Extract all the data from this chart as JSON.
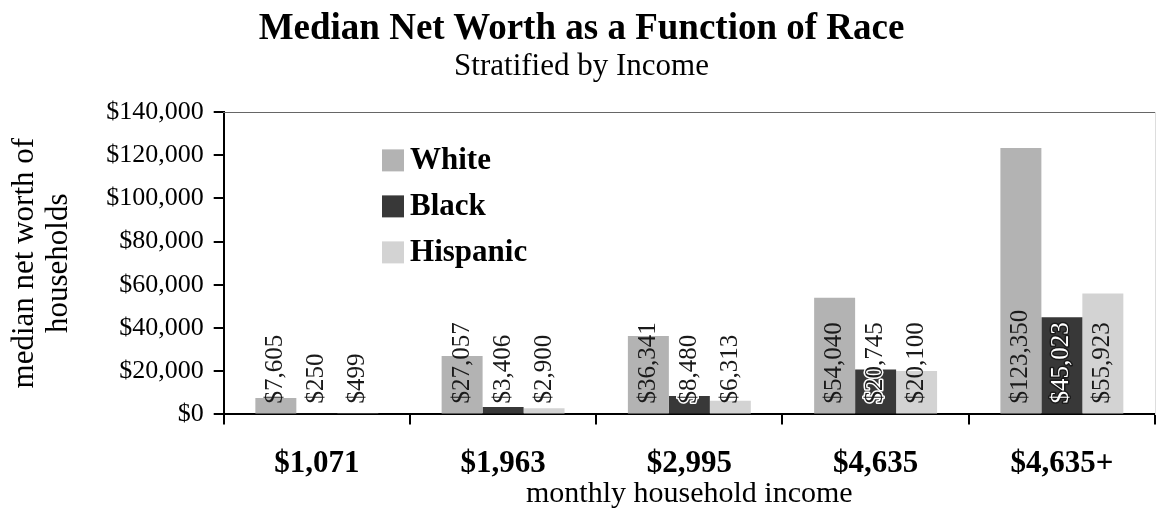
{
  "chart_data": {
    "type": "bar",
    "title": "Median Net Worth as a Function of Race",
    "subtitle": "Stratified by Income",
    "xlabel": "monthly household income",
    "ylabel": "median net worth of households",
    "categories": [
      "$1,071",
      "$1,963",
      "$2,995",
      "$4,635",
      "$4,635+"
    ],
    "series": [
      {
        "name": "White",
        "color": "#b3b3b3",
        "values": [
          7605,
          27057,
          36341,
          54040,
          123350
        ],
        "value_labels": [
          "$7,605",
          "$27,057",
          "$36,341",
          "$54,040",
          "$123,350"
        ]
      },
      {
        "name": "Black",
        "color": "#383838",
        "values": [
          250,
          3406,
          8480,
          20745,
          45023
        ],
        "value_labels": [
          "$250",
          "$3,406",
          "$8,480",
          "$20,745",
          "$45,023"
        ]
      },
      {
        "name": "Hispanic",
        "color": "#d3d3d3",
        "values": [
          499,
          2900,
          6313,
          20100,
          55923
        ],
        "value_labels": [
          "$499",
          "$2,900",
          "$6,313",
          "$20,100",
          "$55,923"
        ]
      }
    ],
    "ylim": [
      0,
      140000
    ],
    "yticks": [
      {
        "value": 0,
        "label": "$0"
      },
      {
        "value": 20000,
        "label": "$20,000"
      },
      {
        "value": 40000,
        "label": "$40,000"
      },
      {
        "value": 60000,
        "label": "$60,000"
      },
      {
        "value": 80000,
        "label": "$80,000"
      },
      {
        "value": 100000,
        "label": "$100,000"
      },
      {
        "value": 120000,
        "label": "$120,000"
      },
      {
        "value": 140000,
        "label": "$140,000"
      }
    ],
    "grid": false,
    "legend": "top left"
  }
}
